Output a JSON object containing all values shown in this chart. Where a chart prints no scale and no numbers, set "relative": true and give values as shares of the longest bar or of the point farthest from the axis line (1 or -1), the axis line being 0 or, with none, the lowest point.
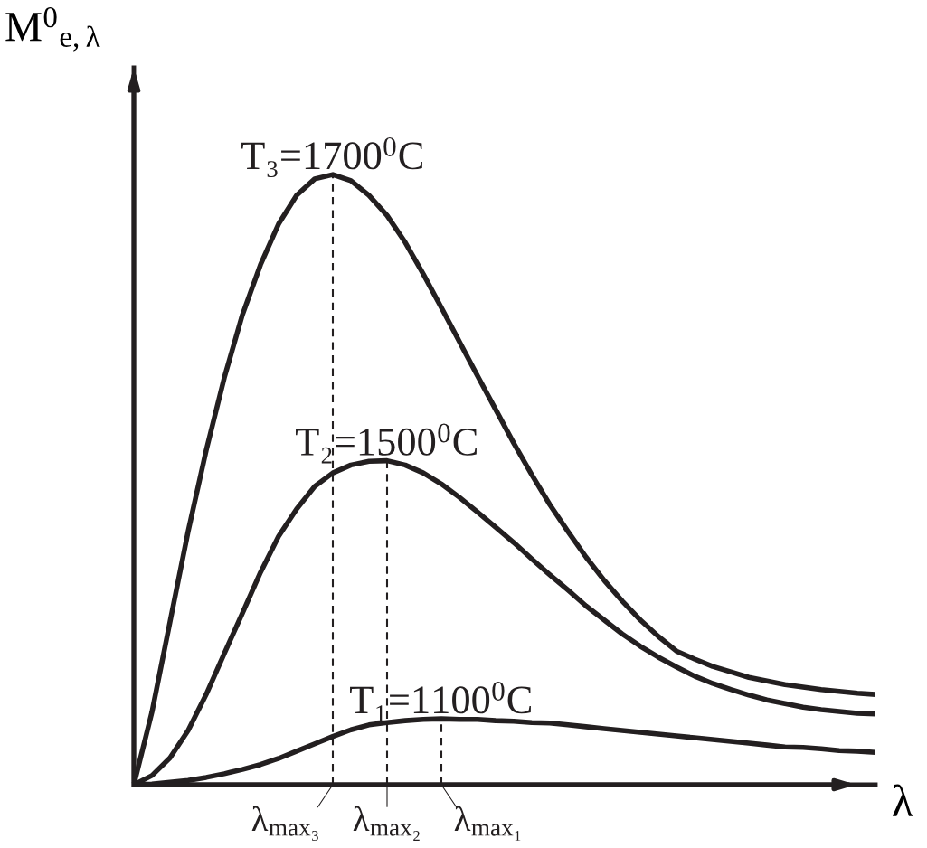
{
  "chart_data": {
    "type": "line",
    "relative": true,
    "xlabel": "λ",
    "ylabel": "M$^{0}$$_{e,λ}$",
    "categories": [
      null,
      null,
      null,
      null,
      null,
      null,
      null,
      null,
      null,
      null,
      null,
      null,
      null,
      null,
      null,
      null,
      null,
      null,
      null,
      null,
      null,
      null,
      null,
      null,
      null,
      null,
      null,
      null,
      null,
      null,
      null,
      null,
      null,
      null,
      null,
      null,
      null,
      null,
      null,
      null,
      null,
      null
    ],
    "series": [
      {
        "name": "T₃=1700$^{0}$C",
        "color": "#231f20",
        "values": [
          0,
          0.119,
          0.267,
          0.415,
          0.548,
          0.667,
          0.77,
          0.852,
          0.919,
          0.966,
          0.993,
          1,
          0.99,
          0.966,
          0.933,
          0.889,
          0.837,
          0.782,
          0.726,
          0.67,
          0.615,
          0.56,
          0.508,
          0.459,
          0.415,
          0.373,
          0.335,
          0.301,
          0.27,
          0.243,
          0.219,
          0.206,
          0.194,
          0.185,
          0.176,
          0.17,
          0.164,
          0.16,
          0.156,
          0.153,
          0.15,
          0.148
        ]
      },
      {
        "name": "T₂=1500$^{0}$C",
        "color": "#231f20",
        "values": [
          0,
          0.015,
          0.044,
          0.089,
          0.148,
          0.215,
          0.281,
          0.348,
          0.407,
          0.452,
          0.489,
          0.511,
          0.524,
          0.53,
          0.531,
          0.524,
          0.511,
          0.493,
          0.471,
          0.447,
          0.422,
          0.397,
          0.37,
          0.344,
          0.319,
          0.293,
          0.27,
          0.247,
          0.227,
          0.209,
          0.193,
          0.178,
          0.166,
          0.156,
          0.147,
          0.139,
          0.133,
          0.127,
          0.123,
          0.12,
          0.117,
          0.116
        ]
      },
      {
        "name": "T₁=1100$^{0}$C",
        "color": "#231f20",
        "values": [
          0,
          0.001,
          0.004,
          0.007,
          0.012,
          0.018,
          0.025,
          0.033,
          0.043,
          0.055,
          0.067,
          0.079,
          0.09,
          0.098,
          0.102,
          0.105,
          0.107,
          0.108,
          0.107,
          0.107,
          0.105,
          0.104,
          0.102,
          0.101,
          0.098,
          0.095,
          0.092,
          0.089,
          0.086,
          0.083,
          0.08,
          0.077,
          0.074,
          0.071,
          0.068,
          0.065,
          0.062,
          0.061,
          0.059,
          0.056,
          0.055,
          0.053
        ]
      }
    ],
    "annotations": [
      "λ$_{max₃}$",
      "λ$_{max₂}$",
      "λ$_{max₁}$"
    ],
    "line_style": "solid",
    "marker": "none",
    "legend": false
  }
}
